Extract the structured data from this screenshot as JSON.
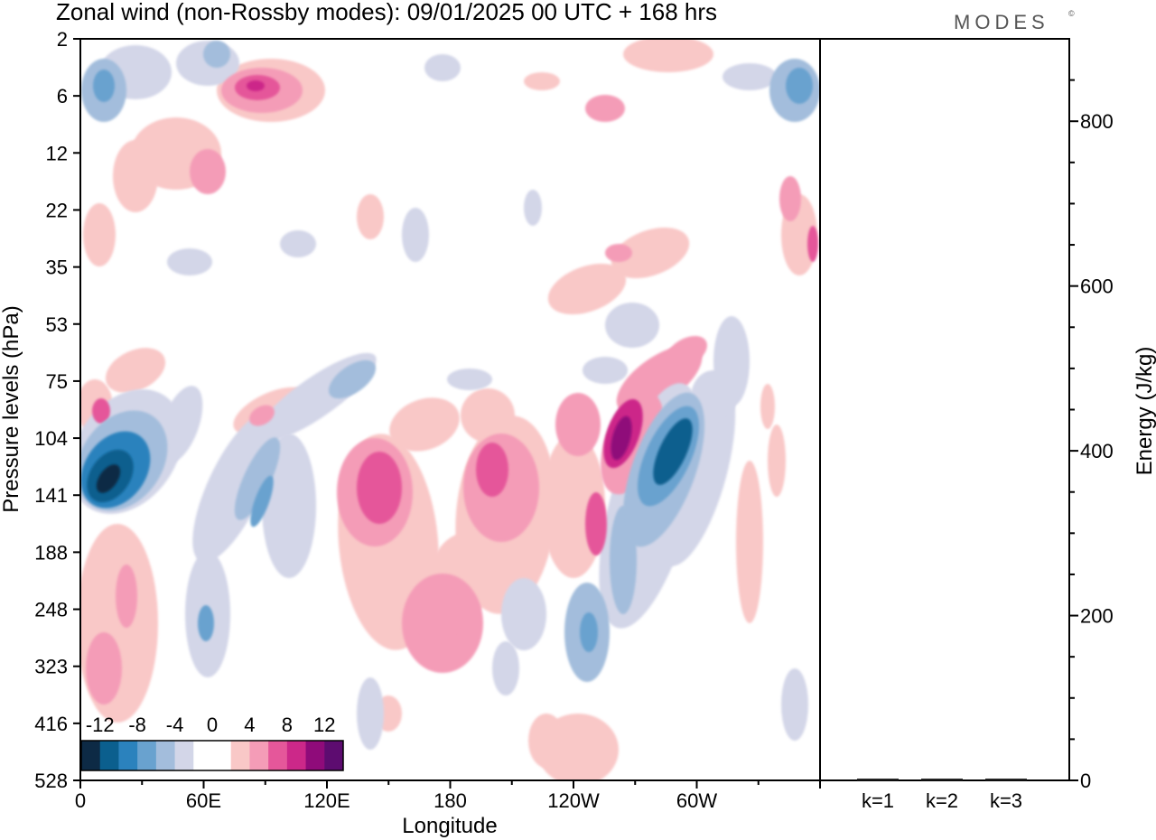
{
  "title": "Zonal wind (non-Rossby modes):  09/01/2025  00 UTC  + 168 hrs",
  "logo": "MODES",
  "logo_mark": "©",
  "chart_data": [
    {
      "type": "heatmap",
      "subtype": "filled-contour",
      "title": "Zonal wind (non-Rossby modes):  09/01/2025  00 UTC  + 168 hrs",
      "xlabel": "Longitude",
      "ylabel": "Pressure levels (hPa)",
      "x_ticks": [
        "0",
        "60E",
        "120E",
        "180",
        "120W",
        "60W"
      ],
      "x_tick_degrees": [
        0,
        60,
        120,
        180,
        240,
        300
      ],
      "xlim": [
        0,
        360
      ],
      "y_ticks": [
        "2",
        "6",
        "12",
        "22",
        "35",
        "53",
        "75",
        "104",
        "141",
        "188",
        "248",
        "323",
        "416",
        "528"
      ],
      "y_scale": "pressure levels (index spacing, top = 2 hPa)",
      "colorbar": {
        "labels": [
          "-12",
          "-8",
          "-4",
          "0",
          "4",
          "8",
          "12"
        ],
        "levels": [
          -14,
          -12,
          -10,
          -8,
          -6,
          -4,
          -2,
          0,
          2,
          4,
          6,
          8,
          10,
          12,
          14
        ],
        "colors": [
          "#0d2a45",
          "#0b5f8e",
          "#2b82bd",
          "#69a2cf",
          "#a3bddc",
          "#d3d6e8",
          "#ffffff",
          "#ffffff",
          "#f9c8c7",
          "#f49cb7",
          "#e5579a",
          "#cc2889",
          "#8f0b7a",
          "#5d0c70"
        ],
        "placement": "bottom-left"
      },
      "features": [
        {
          "label": "easterly maximum",
          "lon": 15,
          "level": "141",
          "value": -13
        },
        {
          "label": "westerly maximum",
          "lon": 150,
          "level": "121",
          "value": 7
        },
        {
          "label": "westerly maximum",
          "lon": 175,
          "level": "248",
          "value": 6
        },
        {
          "label": "westerly maximum",
          "lon": 258,
          "level": "104",
          "value": 11
        },
        {
          "label": "easterly maximum",
          "lon": 283,
          "level": "104",
          "value": -12
        },
        {
          "label": "easterly band",
          "lon": 95,
          "level": "141",
          "value": -7
        },
        {
          "label": "westerly maximum",
          "lon": 82,
          "level": "6",
          "value": 9
        },
        {
          "label": "easterly maximum",
          "lon": 10,
          "level": "6",
          "value": -8
        }
      ]
    },
    {
      "type": "bar",
      "categories": [
        "k=1",
        "k=2",
        "k=3"
      ],
      "values": [
        0.5,
        0.5,
        0.5
      ],
      "ylabel": "Energy (J/kg)",
      "ylim": [
        0,
        900
      ],
      "y_ticks": [
        "0",
        "200",
        "400",
        "600",
        "800"
      ]
    }
  ]
}
